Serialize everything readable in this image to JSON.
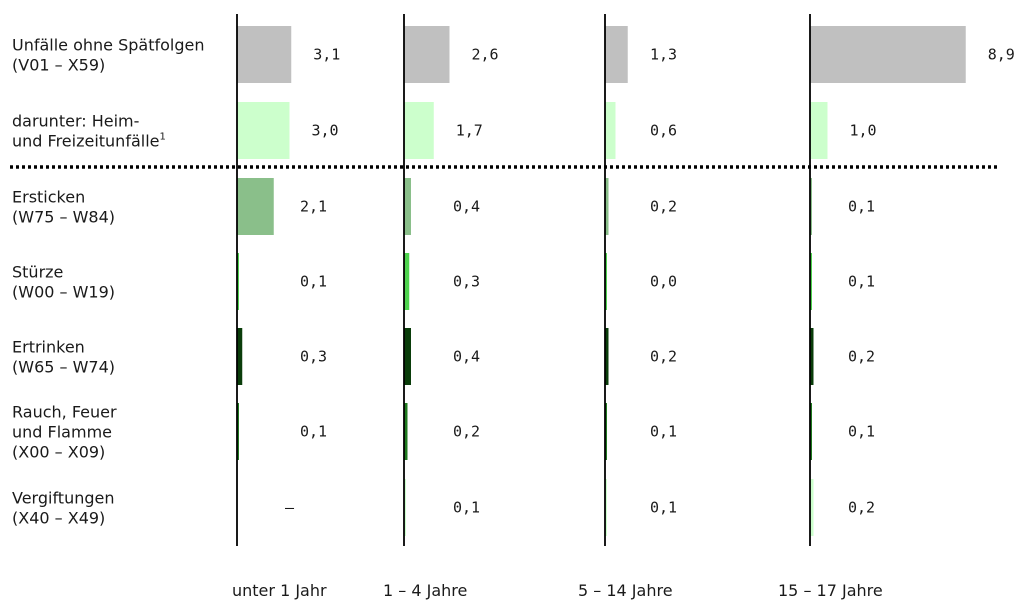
{
  "chart_data": {
    "type": "bar",
    "orientation": "horizontal",
    "groups": [
      "unter 1 Jahr",
      "1 – 4 Jahre",
      "5 – 14 Jahre",
      "15 – 17 Jahre"
    ],
    "rows": [
      {
        "lines": [
          "Unfälle ohne Spätfolgen",
          "(V01 – X59)"
        ],
        "color": "#c0c0c0",
        "values": [
          3.1,
          2.6,
          1.3,
          8.9
        ],
        "labels": [
          "3,1",
          "2,6",
          "1,3",
          "8,9"
        ]
      },
      {
        "lines": [
          "darunter: Heim-",
          "und Freizeitunfälle"
        ],
        "footnote": "1",
        "color": "#ccffcc",
        "values": [
          3.0,
          1.7,
          0.6,
          1.0
        ],
        "labels": [
          "3,0",
          "1,7",
          "0,6",
          "1,0"
        ]
      },
      {
        "lines": [
          "Ersticken",
          "(W75 – W84)"
        ],
        "color": "#8abf8a",
        "values": [
          2.1,
          0.4,
          0.2,
          0.1
        ],
        "labels": [
          "2,1",
          "0,4",
          "0,2",
          "0,1"
        ]
      },
      {
        "lines": [
          "Stürze",
          "(W00 – W19)"
        ],
        "color": "#4ed34e",
        "values": [
          0.1,
          0.3,
          0.0,
          0.1
        ],
        "labels": [
          "0,1",
          "0,3",
          "0,0",
          "0,1"
        ]
      },
      {
        "lines": [
          "Ertrinken",
          "(W65 – W74)"
        ],
        "color": "#0a3d0a",
        "values": [
          0.3,
          0.4,
          0.2,
          0.2
        ],
        "labels": [
          "0,3",
          "0,4",
          "0,2",
          "0,2"
        ]
      },
      {
        "lines": [
          "Rauch, Feuer",
          "und Flamme",
          "(X00 – X09)"
        ],
        "color": "#1f7a1f",
        "values": [
          0.1,
          0.2,
          0.1,
          0.1
        ],
        "labels": [
          "0,1",
          "0,2",
          "0,1",
          "0,1"
        ]
      },
      {
        "lines": [
          "Vergiftungen",
          "(X40 – X49)"
        ],
        "color": "#ccffcc",
        "values": [
          null,
          0.1,
          0.1,
          0.2
        ],
        "labels": [
          "–",
          "0,1",
          "0,1",
          "0,2"
        ]
      }
    ],
    "separator_after_row": 1
  }
}
